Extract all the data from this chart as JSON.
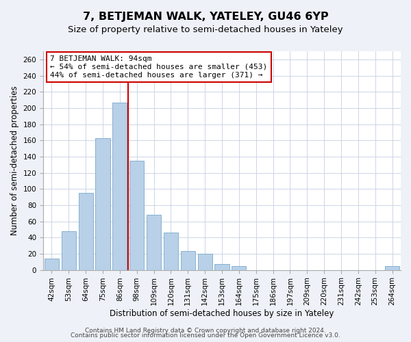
{
  "title": "7, BETJEMAN WALK, YATELEY, GU46 6YP",
  "subtitle": "Size of property relative to semi-detached houses in Yateley",
  "xlabel": "Distribution of semi-detached houses by size in Yateley",
  "ylabel": "Number of semi-detached properties",
  "bar_labels": [
    "42sqm",
    "53sqm",
    "64sqm",
    "75sqm",
    "86sqm",
    "98sqm",
    "109sqm",
    "120sqm",
    "131sqm",
    "142sqm",
    "153sqm",
    "164sqm",
    "175sqm",
    "186sqm",
    "197sqm",
    "209sqm",
    "220sqm",
    "231sqm",
    "242sqm",
    "253sqm",
    "264sqm"
  ],
  "bar_values": [
    14,
    48,
    95,
    163,
    207,
    135,
    68,
    46,
    23,
    20,
    7,
    5,
    0,
    0,
    0,
    0,
    0,
    0,
    0,
    0,
    5
  ],
  "bar_color": "#b8d0e8",
  "bar_edgecolor": "#7aaac8",
  "vline_color": "#cc0000",
  "annotation_text": "7 BETJEMAN WALK: 94sqm\n← 54% of semi-detached houses are smaller (453)\n44% of semi-detached houses are larger (371) →",
  "annotation_box_edgecolor": "#cc0000",
  "annotation_box_facecolor": "#ffffff",
  "ylim": [
    0,
    270
  ],
  "yticks": [
    0,
    20,
    40,
    60,
    80,
    100,
    120,
    140,
    160,
    180,
    200,
    220,
    240,
    260
  ],
  "footer1": "Contains HM Land Registry data © Crown copyright and database right 2024.",
  "footer2": "Contains public sector information licensed under the Open Government Licence v3.0.",
  "bg_color": "#eef2f8",
  "plot_bg_color": "#ffffff",
  "title_fontsize": 11.5,
  "subtitle_fontsize": 9.5,
  "axis_label_fontsize": 8.5,
  "tick_fontsize": 7.5,
  "annotation_fontsize": 8,
  "footer_fontsize": 6.5
}
